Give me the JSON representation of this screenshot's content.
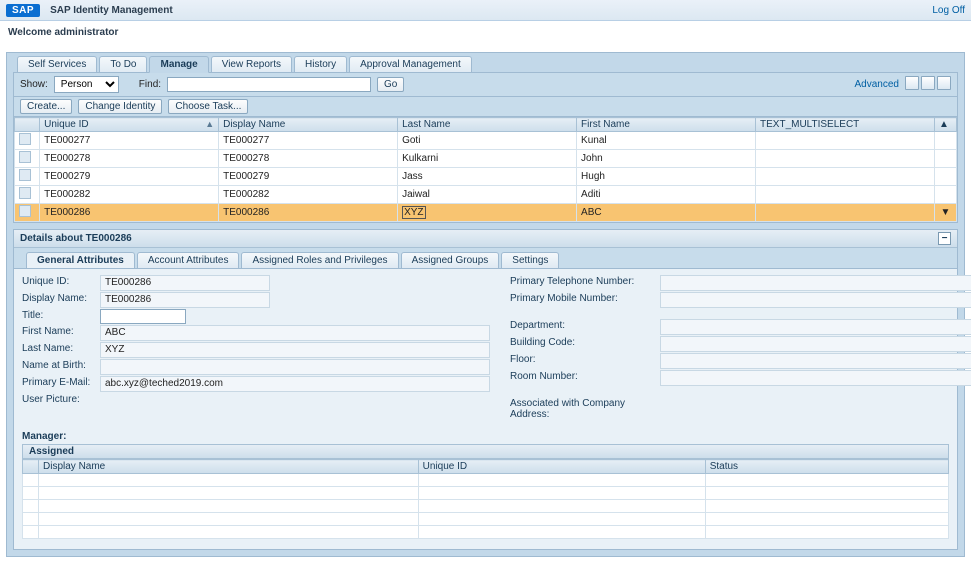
{
  "header": {
    "logo_text": "SAP",
    "app_title": "SAP Identity Management",
    "logoff_label": "Log Off"
  },
  "welcome_text": "Welcome administrator",
  "main_tabs": {
    "items": [
      {
        "label": "Self Services"
      },
      {
        "label": "To Do"
      },
      {
        "label": "Manage"
      },
      {
        "label": "View Reports"
      },
      {
        "label": "History"
      },
      {
        "label": "Approval Management"
      }
    ],
    "active_index": 2
  },
  "filter": {
    "show_label": "Show:",
    "show_value": "Person",
    "find_label": "Find:",
    "find_value": "",
    "go_label": "Go",
    "advanced_label": "Advanced"
  },
  "actions": {
    "create": "Create...",
    "change": "Change Identity",
    "choose": "Choose Task..."
  },
  "grid": {
    "columns": [
      {
        "label": "Unique ID",
        "width": "19%",
        "sorted": true
      },
      {
        "label": "Display Name",
        "width": "19%"
      },
      {
        "label": "Last Name",
        "width": "19%"
      },
      {
        "label": "First Name",
        "width": "19%"
      },
      {
        "label": "TEXT_MULTISELECT",
        "width": "19%"
      }
    ],
    "rows": [
      {
        "c": [
          "TE000277",
          "TE000277",
          "Goti",
          "Kunal",
          ""
        ],
        "sel": false
      },
      {
        "c": [
          "TE000278",
          "TE000278",
          "Kulkarni",
          "John",
          ""
        ],
        "sel": false
      },
      {
        "c": [
          "TE000279",
          "TE000279",
          "Jass",
          "Hugh",
          ""
        ],
        "sel": false
      },
      {
        "c": [
          "TE000282",
          "TE000282",
          "Jaiwal",
          "Aditi",
          ""
        ],
        "sel": false
      },
      {
        "c": [
          "TE000286",
          "TE000286",
          "XYZ",
          "ABC",
          ""
        ],
        "sel": true,
        "hl_col": 2
      }
    ]
  },
  "details": {
    "title": "Details about TE000286",
    "sub_tabs": {
      "items": [
        {
          "label": "General Attributes"
        },
        {
          "label": "Account Attributes"
        },
        {
          "label": "Assigned Roles and Privileges"
        },
        {
          "label": "Assigned Groups"
        },
        {
          "label": "Settings"
        }
      ],
      "active_index": 0
    },
    "left_fields": [
      {
        "label": "Unique ID:",
        "value": "TE000286",
        "type": "ro"
      },
      {
        "label": "Display Name:",
        "value": "TE000286",
        "type": "ro"
      },
      {
        "label": "Title:",
        "value": "",
        "type": "input"
      },
      {
        "label": "First Name:",
        "value": "ABC",
        "type": "ro-wide"
      },
      {
        "label": "Last Name:",
        "value": "XYZ",
        "type": "ro-wide"
      },
      {
        "label": "Name at Birth:",
        "value": "",
        "type": "ro-wide"
      },
      {
        "label": "Primary E-Mail:",
        "value": "abc.xyz@teched2019.com",
        "type": "ro-wide"
      },
      {
        "label": "User Picture:",
        "value": "",
        "type": "none"
      }
    ],
    "right_fields": [
      {
        "label": "Primary Telephone Number:",
        "value": ""
      },
      {
        "label": "Primary Mobile Number:",
        "value": ""
      },
      {
        "label": "",
        "value": "",
        "blank": true
      },
      {
        "label": "Department:",
        "value": ""
      },
      {
        "label": "Building Code:",
        "value": ""
      },
      {
        "label": "Floor:",
        "value": ""
      },
      {
        "label": "Room Number:",
        "value": ""
      },
      {
        "label": "",
        "value": "",
        "blank": true
      },
      {
        "label": "Associated with Company Address:",
        "value": "",
        "noinput": true
      }
    ],
    "manager_label": "Manager:",
    "assigned_label": "Assigned",
    "assigned_cols": [
      "Display Name",
      "Unique ID",
      "Status"
    ],
    "assigned_rows": 5
  }
}
